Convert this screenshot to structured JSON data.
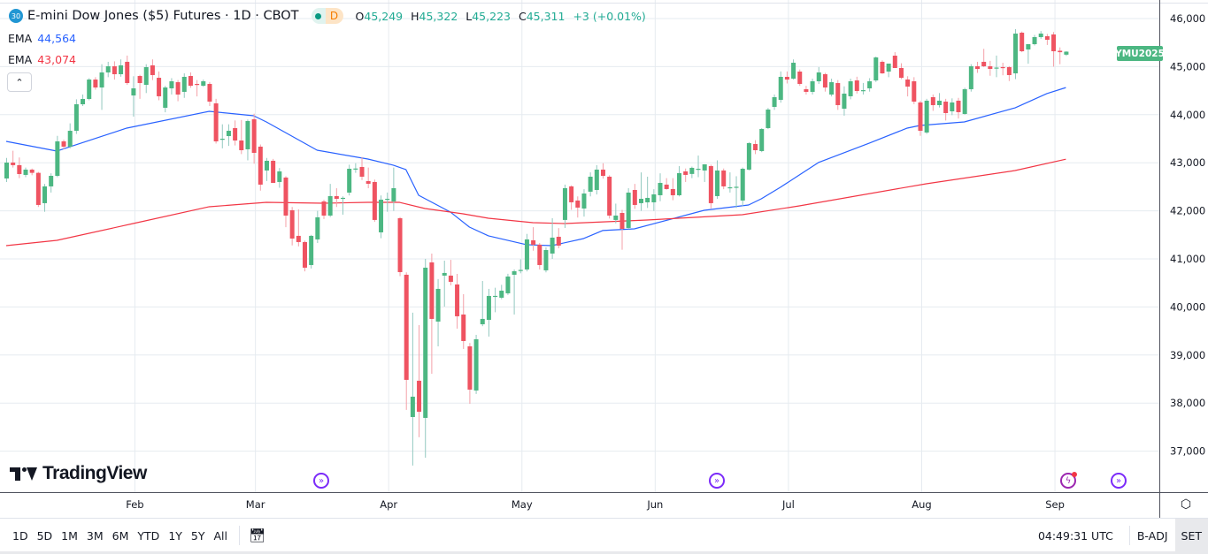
{
  "header": {
    "badge": "30",
    "title": "E-mini Dow Jones ($5) Futures · 1D · CBOT",
    "session_badge": "D",
    "ohlc": {
      "o_label": "O",
      "o": "45,249",
      "h_label": "H",
      "h": "45,322",
      "l_label": "L",
      "l": "45,223",
      "c_label": "C",
      "c": "45,311",
      "change": "+3 (+0.01%)"
    },
    "indicators": [
      {
        "label": "EMA",
        "value": "44,564",
        "color": "#2962ff"
      },
      {
        "label": "EMA",
        "value": "43,074",
        "color": "#f23645"
      }
    ],
    "collapse_icon": "chevron-up-icon"
  },
  "symbol_tag": "YMU2025",
  "logo_text": "TradingView",
  "colors": {
    "up": "#4cb782",
    "down": "#ef5361",
    "ema_fast": "#2962ff",
    "ema_slow": "#f23645",
    "grid": "#e6ebf0"
  },
  "events": [
    {
      "type": "dividend-arrow-icon",
      "candle": 50
    },
    {
      "type": "dividend-arrow-icon",
      "candle": 112
    },
    {
      "type": "lightning-icon",
      "candle": 167
    },
    {
      "type": "dividend-arrow-icon",
      "candle": 175
    }
  ],
  "toolbar": {
    "ranges": [
      "1D",
      "5D",
      "1M",
      "3M",
      "6M",
      "YTD",
      "1Y",
      "5Y",
      "All"
    ],
    "time": "04:49:31 UTC",
    "badj": "B-ADJ",
    "set": "SET"
  },
  "chart_data": {
    "type": "candlestick",
    "title": "E-mini Dow Jones ($5) Futures · 1D · CBOT",
    "ylim": [
      36400,
      46300
    ],
    "y_ticks": [
      37000,
      38000,
      39000,
      40000,
      41000,
      42000,
      43000,
      44000,
      45000,
      46000
    ],
    "y_tick_labels": [
      "37,000",
      "38,000",
      "39,000",
      "40,000",
      "41,000",
      "42,000",
      "43,000",
      "44,000",
      "45,000",
      "46,000"
    ],
    "x_ticks": [
      {
        "label": "Feb",
        "index": 20
      },
      {
        "label": "Mar",
        "index": 39
      },
      {
        "label": "Apr",
        "index": 60
      },
      {
        "label": "May",
        "index": 81
      },
      {
        "label": "Jun",
        "index": 102
      },
      {
        "label": "Jul",
        "index": 123
      },
      {
        "label": "Aug",
        "index": 144
      },
      {
        "label": "Sep",
        "index": 165
      }
    ],
    "grid": true,
    "candles_ohlc": [
      [
        42673,
        43100,
        42600,
        43004
      ],
      [
        43004,
        43250,
        42900,
        42950
      ],
      [
        42950,
        43110,
        42680,
        42765
      ],
      [
        42747,
        42900,
        42700,
        42857
      ],
      [
        42857,
        42880,
        42740,
        42790
      ],
      [
        42790,
        42810,
        42080,
        42122
      ],
      [
        42159,
        42560,
        41980,
        42508
      ],
      [
        42508,
        42780,
        42380,
        42728
      ],
      [
        42728,
        43560,
        42700,
        43445
      ],
      [
        43445,
        43480,
        43280,
        43335
      ],
      [
        43335,
        43820,
        43300,
        43665
      ],
      [
        43665,
        44320,
        43600,
        44217
      ],
      [
        44217,
        44420,
        44180,
        44327
      ],
      [
        44327,
        44760,
        44300,
        44731
      ],
      [
        44731,
        44780,
        44520,
        44566
      ],
      [
        44566,
        45050,
        44100,
        44879
      ],
      [
        44879,
        45100,
        44780,
        45007
      ],
      [
        45007,
        45110,
        44730,
        44842
      ],
      [
        44842,
        45150,
        44790,
        45026
      ],
      [
        45100,
        45230,
        44620,
        44658
      ],
      [
        44400,
        44800,
        43960,
        44548
      ],
      [
        44805,
        44830,
        44330,
        44658
      ],
      [
        44621,
        45050,
        44450,
        44989
      ],
      [
        45026,
        45150,
        44720,
        44824
      ],
      [
        44768,
        44900,
        44300,
        44383
      ],
      [
        44144,
        44600,
        44050,
        44566
      ],
      [
        44548,
        44760,
        44420,
        44695
      ],
      [
        44676,
        44720,
        44280,
        44419
      ],
      [
        44475,
        44860,
        44350,
        44787
      ],
      [
        44805,
        44880,
        44560,
        44603
      ],
      [
        44640,
        44720,
        44380,
        44630
      ],
      [
        44603,
        44730,
        44580,
        44695
      ],
      [
        44640,
        44680,
        44180,
        44272
      ],
      [
        44236,
        44330,
        43400,
        43445
      ],
      [
        43482,
        43800,
        43300,
        43500
      ],
      [
        43555,
        43800,
        43350,
        43665
      ],
      [
        43721,
        43880,
        43360,
        43463
      ],
      [
        43463,
        43890,
        43180,
        43261
      ],
      [
        43280,
        43900,
        43050,
        43868
      ],
      [
        43905,
        44020,
        42980,
        43206
      ],
      [
        43335,
        43380,
        42420,
        42545
      ],
      [
        42839,
        43100,
        42620,
        43041
      ],
      [
        43041,
        43080,
        42620,
        42581
      ],
      [
        42600,
        42890,
        42480,
        42820
      ],
      [
        42692,
        42720,
        41660,
        41901
      ],
      [
        42012,
        42080,
        41280,
        41423
      ],
      [
        41479,
        42030,
        41260,
        41350
      ],
      [
        41350,
        41380,
        40740,
        40817
      ],
      [
        40872,
        41500,
        40800,
        41479
      ],
      [
        41405,
        42000,
        41330,
        41865
      ],
      [
        42195,
        42230,
        41830,
        41901
      ],
      [
        41901,
        42560,
        41870,
        42306
      ],
      [
        42306,
        42470,
        42080,
        42250
      ],
      [
        42250,
        42300,
        41920,
        42270
      ],
      [
        42379,
        42960,
        42320,
        42875
      ],
      [
        42875,
        42990,
        42790,
        42880
      ],
      [
        42912,
        43120,
        42640,
        42710
      ],
      [
        42618,
        42900,
        42470,
        42563
      ],
      [
        42600,
        42650,
        41770,
        41810
      ],
      [
        41552,
        42320,
        41430,
        42232
      ],
      [
        42232,
        42380,
        41980,
        42250
      ],
      [
        42195,
        42900,
        42000,
        42471
      ],
      [
        41846,
        41870,
        40640,
        40725
      ],
      [
        40670,
        40720,
        37860,
        38483
      ],
      [
        37710,
        39880,
        36700,
        38133
      ],
      [
        38465,
        39622,
        37290,
        37820
      ],
      [
        37692,
        41000,
        36865,
        40817
      ],
      [
        40927,
        41110,
        38610,
        39751
      ],
      [
        39696,
        40580,
        39180,
        40376
      ],
      [
        40652,
        40963,
        40008,
        40707
      ],
      [
        40652,
        40980,
        40450,
        40523
      ],
      [
        40468,
        40688,
        39549,
        39806
      ],
      [
        39843,
        40266,
        39126,
        39291
      ],
      [
        39181,
        39250,
        37986,
        38280
      ],
      [
        38262,
        39420,
        38190,
        39328
      ],
      [
        39640,
        40540,
        39600,
        39751
      ],
      [
        39732,
        40376,
        39384,
        40229
      ],
      [
        40229,
        40400,
        39890,
        40230
      ],
      [
        40192,
        40460,
        40160,
        40339
      ],
      [
        40284,
        40690,
        40250,
        40633
      ],
      [
        40670,
        40780,
        39843,
        40743
      ],
      [
        40762,
        40990,
        40700,
        40770
      ],
      [
        40780,
        41520,
        40740,
        41405
      ],
      [
        41387,
        41660,
        41170,
        41295
      ],
      [
        41295,
        41330,
        40780,
        40872
      ],
      [
        40762,
        41240,
        40720,
        41184
      ],
      [
        41111,
        41846,
        41000,
        41442
      ],
      [
        41460,
        41640,
        41220,
        41276
      ],
      [
        41810,
        42545,
        41644,
        42471
      ],
      [
        42508,
        42530,
        42020,
        42177
      ],
      [
        42214,
        42300,
        41860,
        42067
      ],
      [
        42048,
        42450,
        41880,
        42360
      ],
      [
        42398,
        42800,
        42300,
        42710
      ],
      [
        42434,
        42950,
        42340,
        42857
      ],
      [
        42857,
        42990,
        42670,
        42728
      ],
      [
        42710,
        42740,
        41840,
        41901
      ],
      [
        41810,
        42150,
        41740,
        41901
      ],
      [
        41956,
        42020,
        41190,
        41625
      ],
      [
        41644,
        42470,
        41620,
        42379
      ],
      [
        42434,
        42560,
        42040,
        42122
      ],
      [
        42159,
        42800,
        42000,
        42250
      ],
      [
        42177,
        42710,
        42060,
        42269
      ],
      [
        42177,
        42450,
        42000,
        42342
      ],
      [
        42324,
        42780,
        42200,
        42581
      ],
      [
        42545,
        42680,
        42440,
        42453
      ],
      [
        42453,
        42680,
        42220,
        42324
      ],
      [
        42324,
        42930,
        42300,
        42784
      ],
      [
        42820,
        42880,
        42600,
        42747
      ],
      [
        42767,
        42920,
        42680,
        42894
      ],
      [
        42857,
        43150,
        42700,
        42875
      ],
      [
        42839,
        42970,
        42600,
        42967
      ],
      [
        42930,
        42960,
        42050,
        42159
      ],
      [
        42306,
        43050,
        42250,
        42839
      ],
      [
        42839,
        42880,
        42450,
        42508
      ],
      [
        42490,
        42800,
        42380,
        42490
      ],
      [
        42490,
        42720,
        42060,
        42500
      ],
      [
        42214,
        42900,
        42100,
        42875
      ],
      [
        42857,
        43430,
        42840,
        43408
      ],
      [
        43390,
        43470,
        43180,
        43261
      ],
      [
        43243,
        43720,
        43220,
        43702
      ],
      [
        43721,
        44140,
        43700,
        44107
      ],
      [
        44162,
        44420,
        44100,
        44364
      ],
      [
        44309,
        44900,
        44250,
        44787
      ],
      [
        44787,
        44900,
        44650,
        44731
      ],
      [
        44750,
        45150,
        44730,
        45081
      ],
      [
        44897,
        44940,
        44600,
        44640
      ],
      [
        44530,
        44600,
        44420,
        44475
      ],
      [
        44475,
        44750,
        44420,
        44695
      ],
      [
        44695,
        44990,
        44640,
        44879
      ],
      [
        44842,
        44870,
        44480,
        44566
      ],
      [
        44419,
        44750,
        44380,
        44676
      ],
      [
        44658,
        44720,
        44100,
        44199
      ],
      [
        44125,
        44590,
        43980,
        44438
      ],
      [
        44383,
        44750,
        44320,
        44695
      ],
      [
        44713,
        44790,
        44440,
        44493
      ],
      [
        44493,
        44660,
        44420,
        44510
      ],
      [
        44548,
        44760,
        44480,
        44695
      ],
      [
        44713,
        45210,
        44680,
        45191
      ],
      [
        45100,
        45130,
        44850,
        44860
      ],
      [
        44897,
        45050,
        44780,
        45063
      ],
      [
        45228,
        45300,
        44970,
        44971
      ],
      [
        44971,
        45070,
        44740,
        44768
      ],
      [
        44732,
        44800,
        44380,
        44585
      ],
      [
        44695,
        44780,
        44220,
        44272
      ],
      [
        44254,
        44290,
        43560,
        43665
      ],
      [
        43629,
        44330,
        43600,
        44291
      ],
      [
        44364,
        44420,
        44080,
        44199
      ],
      [
        44199,
        44450,
        44150,
        44291
      ],
      [
        44272,
        44330,
        43880,
        44033
      ],
      [
        44070,
        44340,
        43990,
        44254
      ],
      [
        44291,
        44350,
        43920,
        44052
      ],
      [
        44015,
        44560,
        44000,
        44530
      ],
      [
        44530,
        45050,
        44480,
        45007
      ],
      [
        45007,
        45100,
        44870,
        44952
      ],
      [
        45100,
        45370,
        44990,
        45007
      ],
      [
        45007,
        45120,
        44810,
        44952
      ],
      [
        44970,
        45230,
        44780,
        44980
      ],
      [
        44990,
        45080,
        44820,
        44985
      ],
      [
        44989,
        45010,
        44700,
        44824
      ],
      [
        44860,
        45780,
        44740,
        45687
      ],
      [
        45706,
        45730,
        45300,
        45320
      ],
      [
        45357,
        45470,
        45060,
        45467
      ],
      [
        45467,
        45660,
        45440,
        45614
      ],
      [
        45614,
        45740,
        45580,
        45687
      ],
      [
        45632,
        45680,
        45450,
        45559
      ],
      [
        45669,
        45720,
        45000,
        45320
      ],
      [
        45330,
        45400,
        45050,
        45300
      ],
      [
        45249,
        45322,
        45223,
        45311
      ]
    ],
    "series": [
      {
        "name": "EMA (fast)",
        "last": 44564,
        "points": [
          [
            0,
            43445
          ],
          [
            8,
            43243
          ],
          [
            19,
            43721
          ],
          [
            32,
            44070
          ],
          [
            39,
            43978
          ],
          [
            41,
            43849
          ],
          [
            49,
            43261
          ],
          [
            57,
            43077
          ],
          [
            61,
            42949
          ],
          [
            63,
            42857
          ],
          [
            65,
            42324
          ],
          [
            70,
            41975
          ],
          [
            73,
            41662
          ],
          [
            76,
            41479
          ],
          [
            82,
            41295
          ],
          [
            86,
            41276
          ],
          [
            91,
            41423
          ],
          [
            94,
            41590
          ],
          [
            99,
            41625
          ],
          [
            110,
            42011
          ],
          [
            117,
            42121
          ],
          [
            119,
            42250
          ],
          [
            122,
            42489
          ],
          [
            125,
            42746
          ],
          [
            128,
            43004
          ],
          [
            136,
            43408
          ],
          [
            142,
            43721
          ],
          [
            144,
            43776
          ],
          [
            151,
            43849
          ],
          [
            159,
            44143
          ],
          [
            164,
            44438
          ],
          [
            167,
            44564
          ]
        ]
      },
      {
        "name": "EMA (slow)",
        "last": 43074,
        "points": [
          [
            0,
            41276
          ],
          [
            8,
            41386
          ],
          [
            20,
            41735
          ],
          [
            32,
            42085
          ],
          [
            41,
            42176
          ],
          [
            50,
            42158
          ],
          [
            57,
            42176
          ],
          [
            62,
            42176
          ],
          [
            66,
            42048
          ],
          [
            72,
            41938
          ],
          [
            76,
            41846
          ],
          [
            83,
            41754
          ],
          [
            88,
            41735
          ],
          [
            101,
            41809
          ],
          [
            116,
            41919
          ],
          [
            125,
            42103
          ],
          [
            145,
            42563
          ],
          [
            159,
            42838
          ],
          [
            167,
            43074
          ]
        ]
      }
    ]
  }
}
